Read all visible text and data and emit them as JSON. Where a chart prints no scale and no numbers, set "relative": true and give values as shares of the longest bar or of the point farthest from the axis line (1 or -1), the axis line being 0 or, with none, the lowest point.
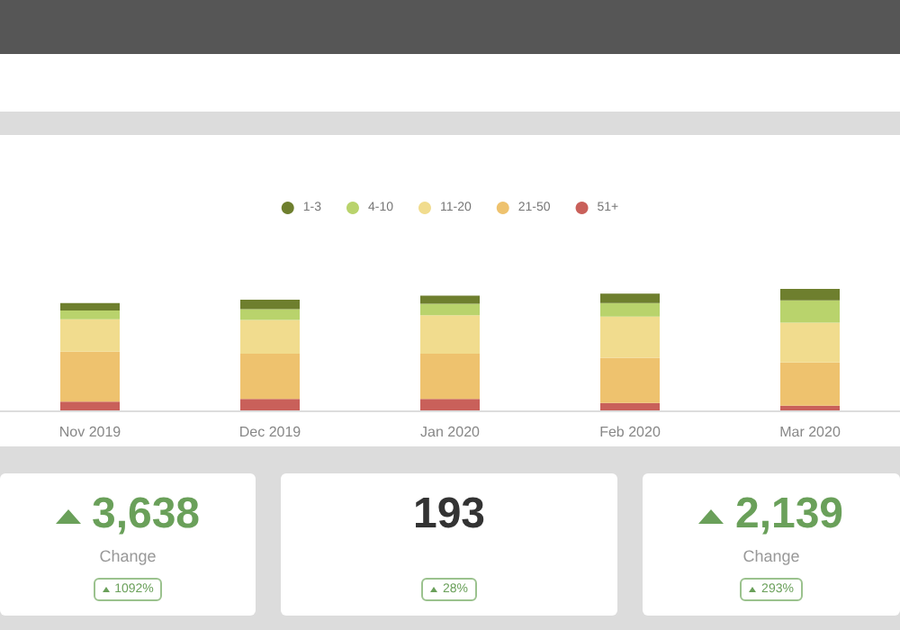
{
  "chart_data": [
    {
      "type": "bar",
      "stacked": true,
      "relative": true,
      "legend": "top",
      "categories": [
        "Nov 2019",
        "Dec 2019",
        "Jan 2020",
        "Feb 2020",
        "Mar 2020"
      ],
      "series": [
        {
          "name": "51+",
          "color": "#c9605a",
          "values": [
            0.072,
            0.094,
            0.094,
            0.061,
            0.039
          ]
        },
        {
          "name": "21-50",
          "color": "#eec26e",
          "values": [
            0.411,
            0.372,
            0.372,
            0.372,
            0.356
          ]
        },
        {
          "name": "11-20",
          "color": "#f1dc8e",
          "values": [
            0.267,
            0.278,
            0.317,
            0.339,
            0.328
          ]
        },
        {
          "name": "4-10",
          "color": "#b9d36c",
          "values": [
            0.072,
            0.089,
            0.094,
            0.111,
            0.183
          ]
        },
        {
          "name": "1-3",
          "color": "#6e7f2e",
          "values": [
            0.061,
            0.078,
            0.067,
            0.078,
            0.094
          ]
        }
      ]
    },
    {
      "type": "other",
      "annotations": [
        "3,638",
        "Change",
        "1092%",
        "193",
        "28%",
        "2,139",
        "Change",
        "293%"
      ]
    }
  ]
}
